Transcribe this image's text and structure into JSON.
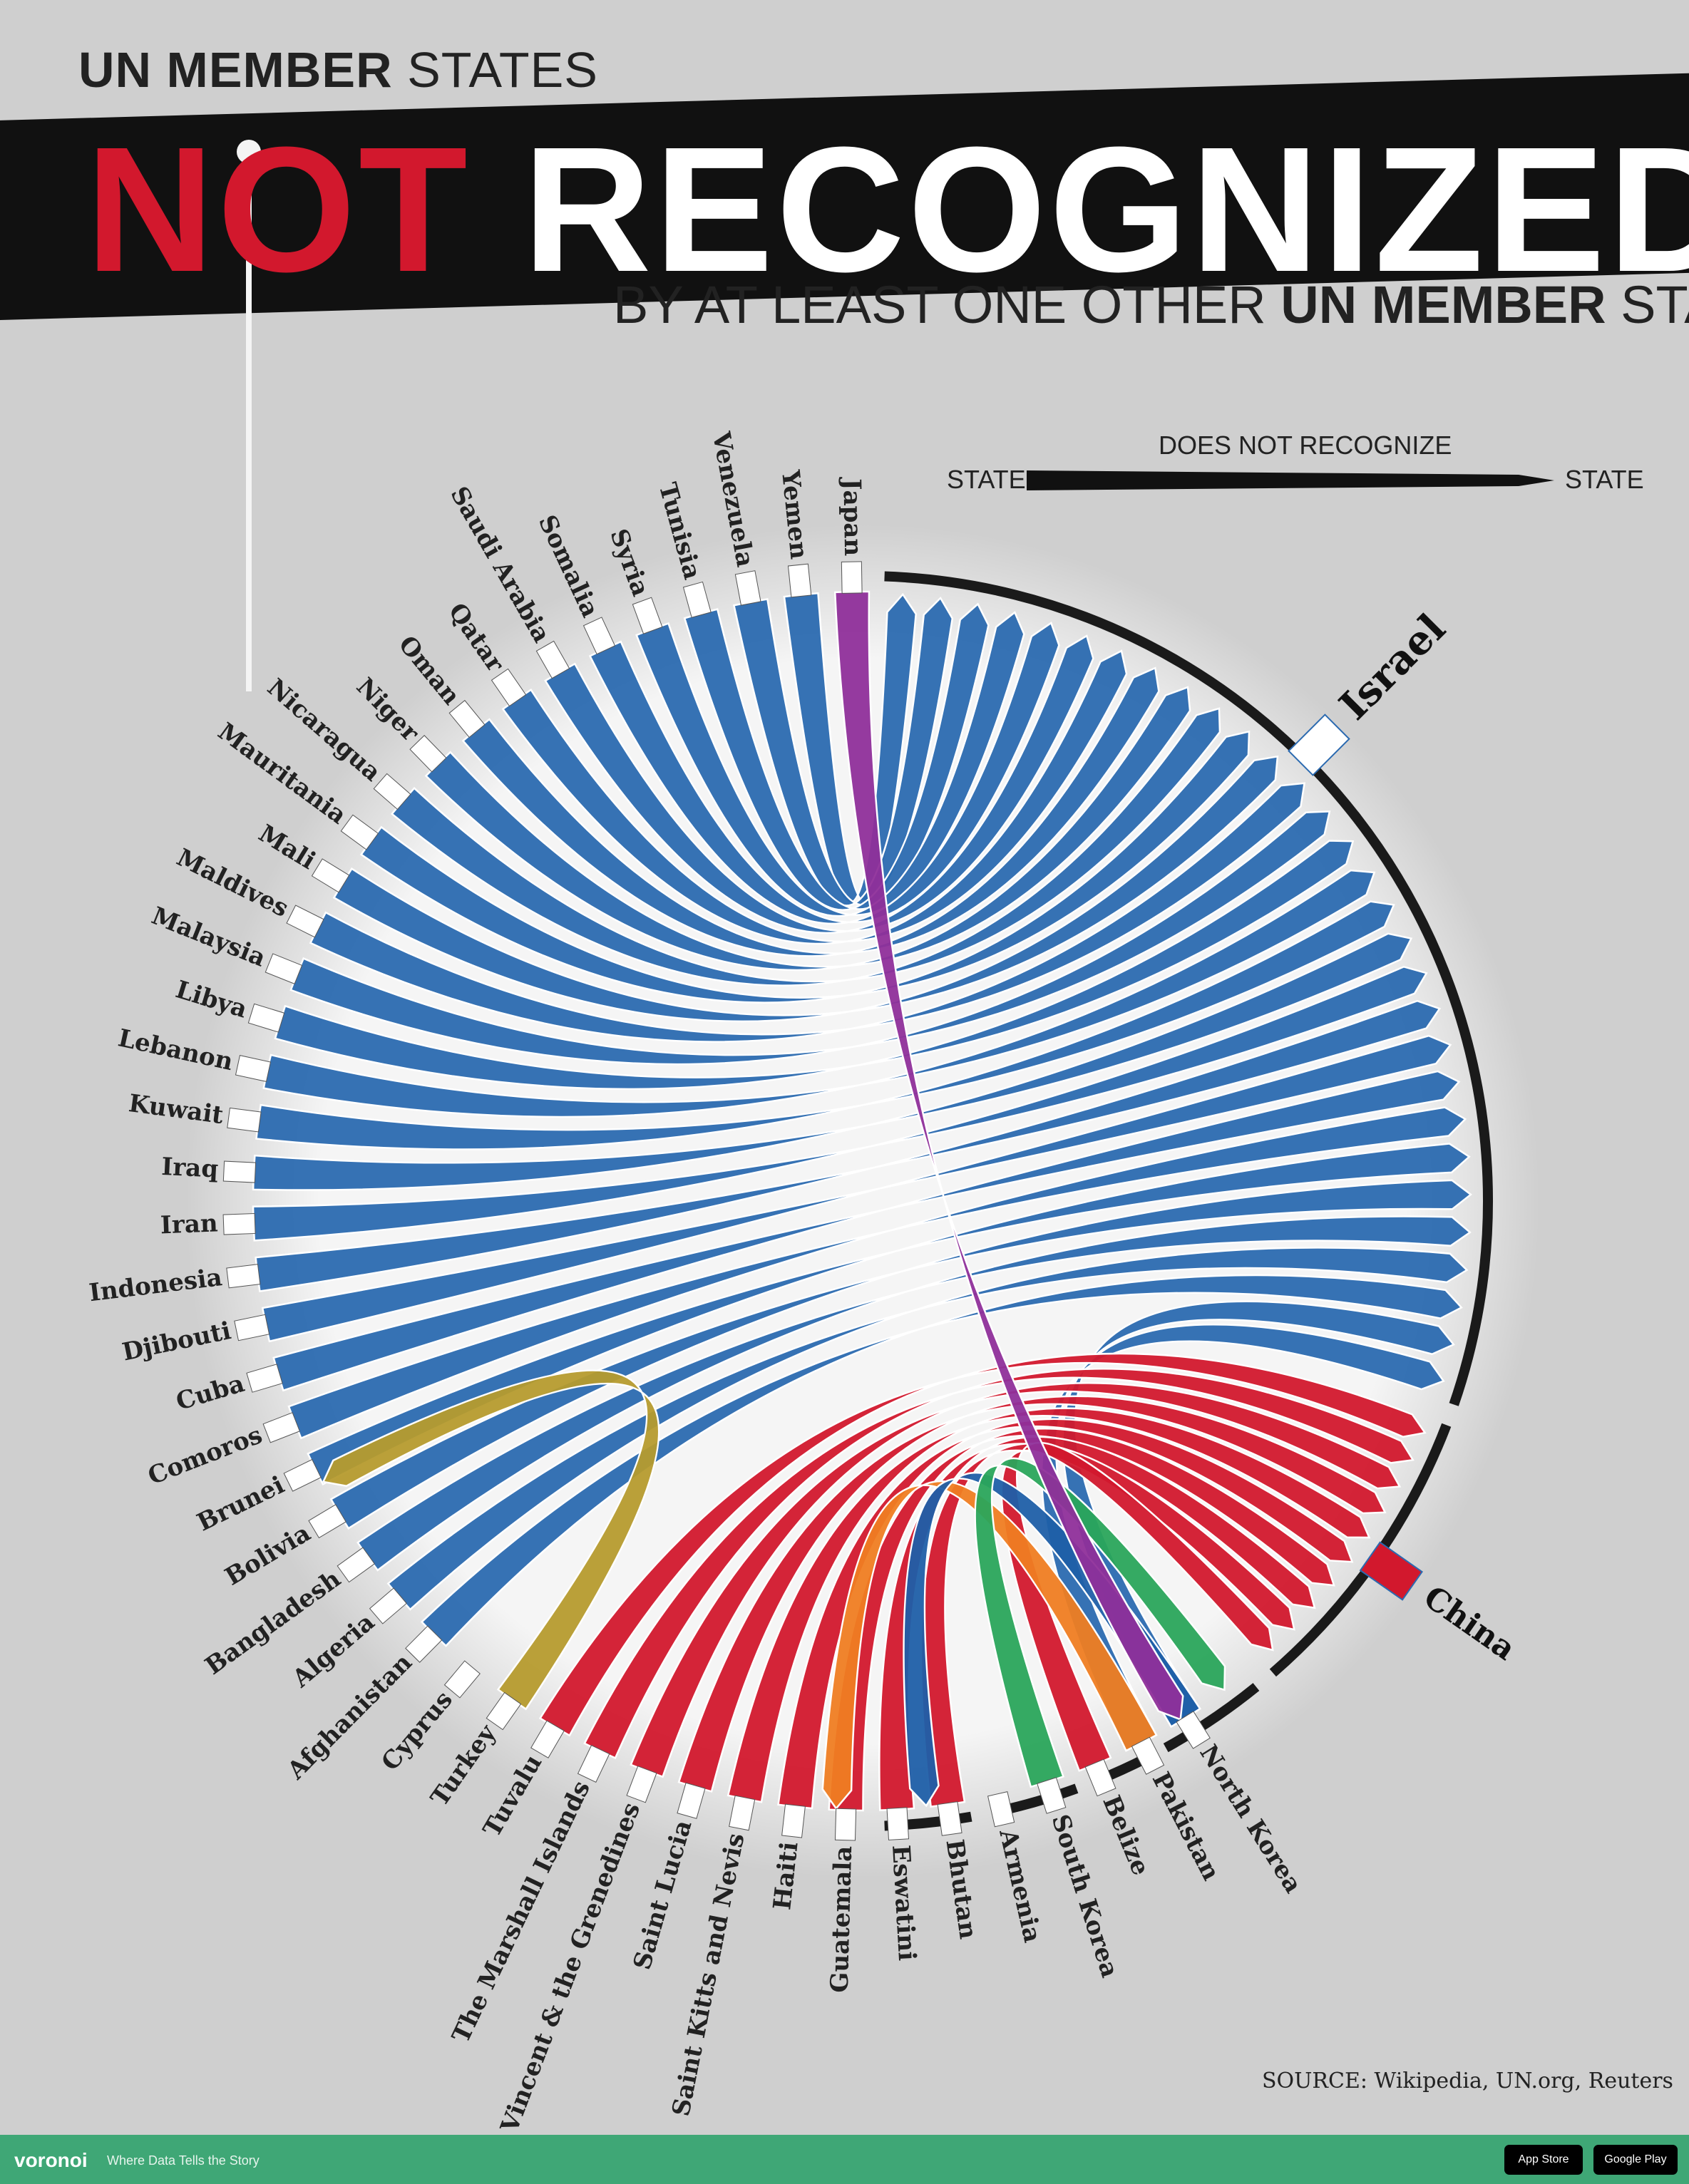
{
  "header": {
    "kicker_part1": "UN MEMBER",
    "kicker_part2": " STATES",
    "title_highlight": "NOT",
    "title_rest": " RECOGNIZED",
    "subtitle_part1": "BY AT LEAST ONE OTHER ",
    "subtitle_part2": "UN MEMBER",
    "subtitle_part3": " STATE"
  },
  "legend": {
    "title": "DOES NOT RECOGNIZE",
    "left_label": "STATE",
    "right_label": "STATE"
  },
  "source": "SOURCE: Wikipedia, UN.org, Reuters",
  "footer": {
    "brand": "voronoi",
    "tagline": "Where Data Tells the Story",
    "app_store": "App Store",
    "google_play": "Google Play"
  },
  "colors": {
    "israel": "#2b6ab0",
    "china": "#d2182d",
    "cyprus": "#b69b2e",
    "armenia": "#ef7d22",
    "south_korea": "#2aa55b",
    "japan": "#8f2f9a",
    "north_korea": "#1f5fa8"
  },
  "chart_data": {
    "type": "chord",
    "title": "UN member states not recognized by at least one other UN member state",
    "targets": [
      "Israel",
      "China",
      "North Korea",
      "Pakistan",
      "Belize",
      "South Korea",
      "Armenia",
      "Cyprus"
    ],
    "sources": [
      "Japan",
      "Yemen",
      "Venezuela",
      "Tunisia",
      "Syria",
      "Somalia",
      "Saudi Arabia",
      "Qatar",
      "Oman",
      "Niger",
      "Nicaragua",
      "Mauritania",
      "Mali",
      "Maldives",
      "Malaysia",
      "Libya",
      "Lebanon",
      "Kuwait",
      "Iraq",
      "Iran",
      "Indonesia",
      "Djibouti",
      "Cuba",
      "Comoros",
      "Brunei",
      "Bolivia",
      "Bangladesh",
      "Algeria",
      "Afghanistan",
      "Cyprus",
      "Turkey",
      "Tuvalu",
      "The Marshall Islands",
      "Saint Vincent & the Grenedines",
      "Saint Lucia",
      "Saint Kitts and Nevis",
      "Haiti",
      "Guatemala",
      "Eswatini",
      "Bhutan",
      "Armenia",
      "South Korea",
      "Belize",
      "Pakistan",
      "North Korea"
    ],
    "links": [
      {
        "from": "Yemen",
        "to": "Israel"
      },
      {
        "from": "Venezuela",
        "to": "Israel"
      },
      {
        "from": "Tunisia",
        "to": "Israel"
      },
      {
        "from": "Syria",
        "to": "Israel"
      },
      {
        "from": "Somalia",
        "to": "Israel"
      },
      {
        "from": "Saudi Arabia",
        "to": "Israel"
      },
      {
        "from": "Qatar",
        "to": "Israel"
      },
      {
        "from": "Oman",
        "to": "Israel"
      },
      {
        "from": "Niger",
        "to": "Israel"
      },
      {
        "from": "Nicaragua",
        "to": "Israel"
      },
      {
        "from": "Mauritania",
        "to": "Israel"
      },
      {
        "from": "Mali",
        "to": "Israel"
      },
      {
        "from": "Maldives",
        "to": "Israel"
      },
      {
        "from": "Malaysia",
        "to": "Israel"
      },
      {
        "from": "Libya",
        "to": "Israel"
      },
      {
        "from": "Lebanon",
        "to": "Israel"
      },
      {
        "from": "Kuwait",
        "to": "Israel"
      },
      {
        "from": "Iraq",
        "to": "Israel"
      },
      {
        "from": "Iran",
        "to": "Israel"
      },
      {
        "from": "Indonesia",
        "to": "Israel"
      },
      {
        "from": "Djibouti",
        "to": "Israel"
      },
      {
        "from": "Cuba",
        "to": "Israel"
      },
      {
        "from": "Comoros",
        "to": "Israel"
      },
      {
        "from": "Brunei",
        "to": "Israel"
      },
      {
        "from": "Bolivia",
        "to": "Israel"
      },
      {
        "from": "Bangladesh",
        "to": "Israel"
      },
      {
        "from": "Algeria",
        "to": "Israel"
      },
      {
        "from": "Afghanistan",
        "to": "Israel"
      },
      {
        "from": "North Korea",
        "to": "Israel"
      },
      {
        "from": "Pakistan",
        "to": "Israel"
      },
      {
        "from": "Turkey",
        "to": "Cyprus"
      },
      {
        "from": "Tuvalu",
        "to": "China"
      },
      {
        "from": "The Marshall Islands",
        "to": "China"
      },
      {
        "from": "Saint Vincent & the Grenedines",
        "to": "China"
      },
      {
        "from": "Saint Lucia",
        "to": "China"
      },
      {
        "from": "Saint Kitts and Nevis",
        "to": "China"
      },
      {
        "from": "Haiti",
        "to": "China"
      },
      {
        "from": "Guatemala",
        "to": "China"
      },
      {
        "from": "Eswatini",
        "to": "China"
      },
      {
        "from": "Bhutan",
        "to": "China"
      },
      {
        "from": "Belize",
        "to": "China"
      },
      {
        "from": "Pakistan",
        "to": "Armenia"
      },
      {
        "from": "North Korea",
        "to": "South Korea"
      },
      {
        "from": "South Korea",
        "to": "North Korea"
      },
      {
        "from": "Japan",
        "to": "North Korea"
      }
    ]
  }
}
